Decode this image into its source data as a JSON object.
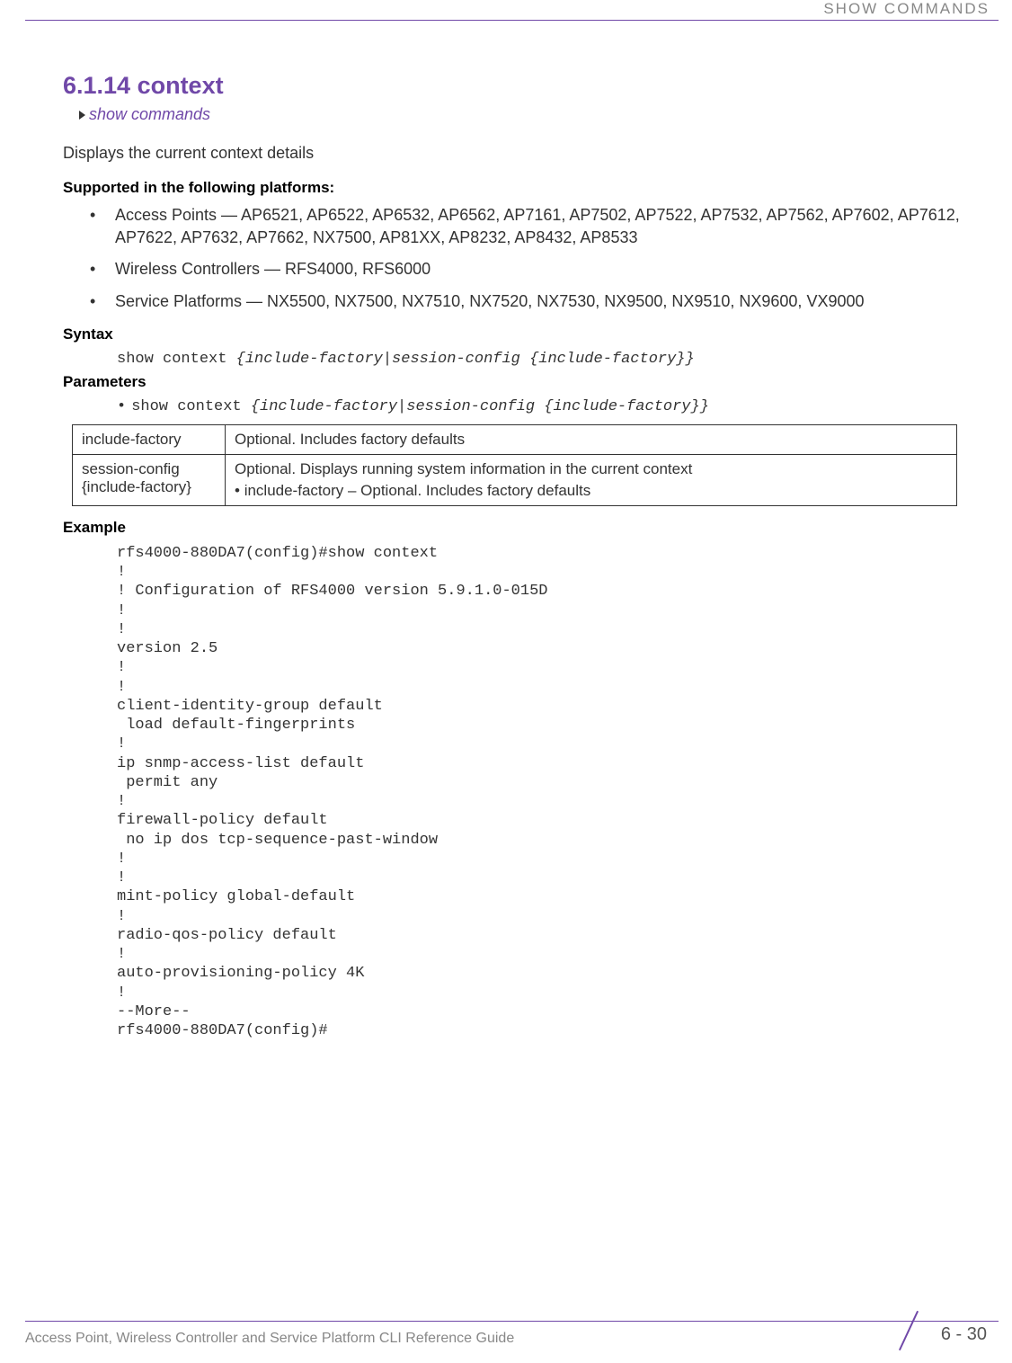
{
  "header": {
    "chapter": "SHOW COMMANDS"
  },
  "section": {
    "number_title": "6.1.14 context",
    "breadcrumb": "show commands",
    "description": "Displays the current context details"
  },
  "supported": {
    "title": "Supported in the following platforms:",
    "items": [
      "Access Points — AP6521, AP6522, AP6532, AP6562, AP7161, AP7502, AP7522, AP7532, AP7562, AP7602, AP7612, AP7622, AP7632, AP7662, NX7500, AP81XX, AP8232, AP8432, AP8533",
      "Wireless Controllers — RFS4000, RFS6000",
      "Service Platforms — NX5500, NX7500, NX7510, NX7520, NX7530, NX9500, NX9510, NX9600, VX9000"
    ]
  },
  "syntax": {
    "title": "Syntax",
    "cmd_prefix": "show context ",
    "cmd_params": "{include-factory|session-config {include-factory}}"
  },
  "parameters": {
    "title": "Parameters",
    "cmd_prefix": "show context ",
    "cmd_params": "{include-factory|session-config {include-factory}}",
    "table": {
      "row1": {
        "name": "include-factory",
        "desc": "Optional. Includes factory defaults"
      },
      "row2": {
        "name": "session-config {include-factory}",
        "desc_line1": "Optional. Displays running system information in the current context",
        "desc_bullet": "include-factory – Optional. Includes factory defaults"
      }
    }
  },
  "example": {
    "title": "Example",
    "code": "rfs4000-880DA7(config)#show context\n!\n! Configuration of RFS4000 version 5.9.1.0-015D\n!\n!\nversion 2.5\n!\n!\nclient-identity-group default\n load default-fingerprints\n!\nip snmp-access-list default\n permit any\n!\nfirewall-policy default\n no ip dos tcp-sequence-past-window\n!\n!\nmint-policy global-default\n!\nradio-qos-policy default\n!\nauto-provisioning-policy 4K\n!\n--More--\nrfs4000-880DA7(config)#"
  },
  "footer": {
    "guide_title": "Access Point, Wireless Controller and Service Platform CLI Reference Guide",
    "page": "6 - 30"
  },
  "colors": {
    "accent": "#7048a8",
    "text": "#333333",
    "muted": "#888888"
  }
}
